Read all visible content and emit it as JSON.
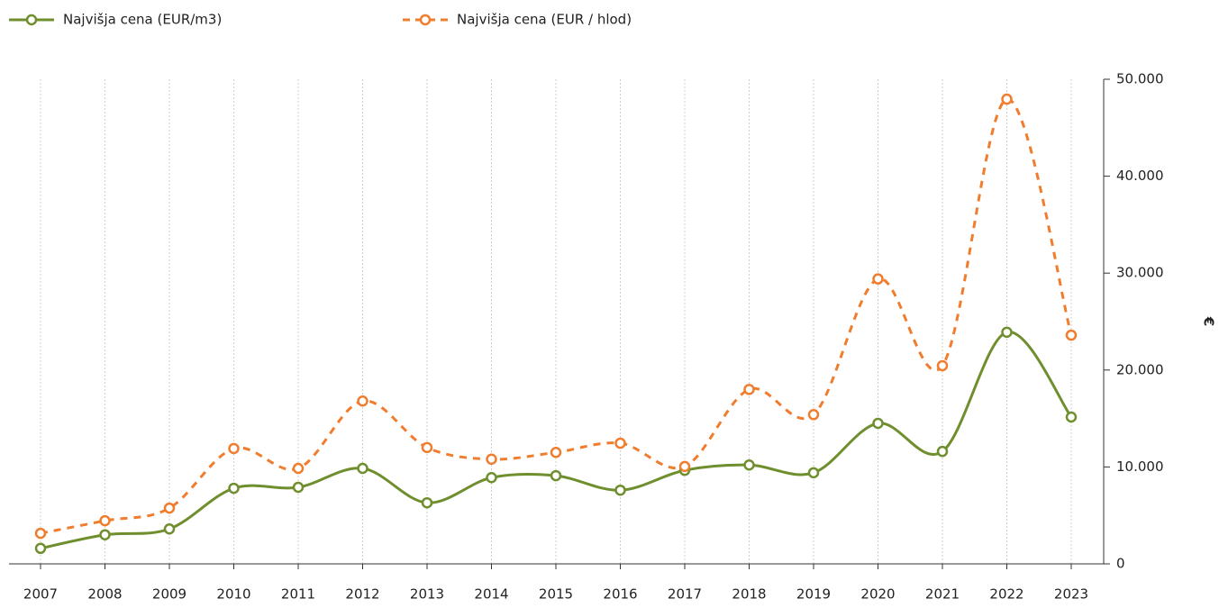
{
  "chart_data": {
    "type": "line",
    "categories": [
      "2007",
      "2008",
      "2009",
      "2010",
      "2011",
      "2012",
      "2013",
      "2014",
      "2015",
      "2016",
      "2017",
      "2018",
      "2019",
      "2020",
      "2021",
      "2022",
      "2023"
    ],
    "series": [
      {
        "name": "Najvišja cena (EUR/m3)",
        "color": "#6f8f2f",
        "line_style": "solid",
        "values": [
          1600,
          3000,
          3600,
          7800,
          7900,
          9850,
          6300,
          8900,
          9100,
          7600,
          9650,
          10200,
          9400,
          14500,
          11600,
          23900,
          15150
        ]
      },
      {
        "name": "Najvišja cena (EUR / hlod)",
        "color": "#f07d2e",
        "line_style": "dashed",
        "values": [
          3150,
          4450,
          5750,
          11900,
          9850,
          16800,
          12000,
          10800,
          11500,
          12450,
          10050,
          18000,
          15400,
          29400,
          20450,
          47950,
          23600
        ]
      }
    ],
    "y_label": "€",
    "y_axis_side": "right",
    "ylim": [
      0,
      50000
    ],
    "yticks": [
      0,
      {
        "value": 10000,
        "label": "10.000"
      },
      {
        "value": 20000,
        "label": "20.000"
      },
      {
        "value": 30000,
        "label": "30.000"
      },
      {
        "value": 40000,
        "label": "40.000"
      },
      {
        "value": 50000,
        "label": "50.000"
      }
    ],
    "grid": true,
    "smooth": true,
    "legend": "top-left"
  }
}
